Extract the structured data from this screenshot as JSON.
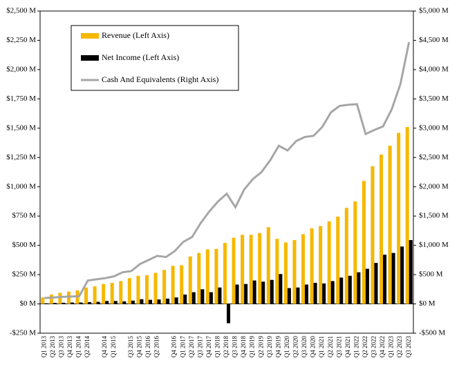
{
  "chart_data": {
    "type": "bar",
    "categories": [
      "Q1 2013",
      "Q2 2013",
      "Q3 2013",
      "Q4 2013",
      "Q1 2014",
      "Q2 2014",
      null,
      "Q4 2014",
      "Q1 2015",
      null,
      "Q3 2015",
      "Q4 2015",
      "Q1 2016",
      "Q2 2016",
      null,
      "Q4 2016",
      "Q1 2017",
      "Q2 2017",
      "Q3 2017",
      "Q4 2017",
      "Q1 2018",
      "Q2 2018",
      "Q3 2018",
      "Q4 2018",
      "Q1 2019",
      "Q2 2019",
      "Q3 2019",
      "Q4 2019",
      "Q1 2020",
      "Q2 2020",
      "Q3 2020",
      "Q4 2020",
      "Q1 2021",
      "Q2 2021",
      "Q3 2021",
      "Q4 2021",
      "Q1 2022",
      "Q2 2022",
      "Q3 2022",
      "Q4 2022",
      "Q1 2023",
      "Q2 2023",
      "Q3 2023"
    ],
    "series": [
      {
        "name": "Revenue (Left Axis)",
        "color": "#f5b800",
        "kind": "bar",
        "values": [
          55,
          80,
          95,
          105,
          115,
          140,
          150,
          170,
          180,
          195,
          220,
          240,
          245,
          265,
          290,
          325,
          330,
          405,
          435,
          465,
          470,
          520,
          565,
          590,
          590,
          605,
          655,
          555,
          525,
          545,
          595,
          645,
          665,
          705,
          745,
          820,
          875,
          1050,
          1175,
          1275,
          1350,
          1460,
          1510
        ]
      },
      {
        "name": "Net Income (Left Axis)",
        "color": "#000000",
        "kind": "bar",
        "values": [
          5,
          8,
          10,
          12,
          12,
          15,
          18,
          25,
          25,
          22,
          28,
          40,
          35,
          38,
          45,
          55,
          80,
          100,
          125,
          100,
          140,
          -165,
          165,
          170,
          200,
          190,
          205,
          255,
          135,
          140,
          165,
          180,
          175,
          195,
          225,
          240,
          270,
          300,
          350,
          420,
          435,
          490,
          545
        ]
      },
      {
        "name": "Cash And Equivalents (Right Axis)",
        "color": "#a6a6a6",
        "kind": "line",
        "axis": "y2",
        "values": [
          100,
          110,
          120,
          125,
          130,
          400,
          420,
          440,
          470,
          540,
          560,
          680,
          750,
          820,
          800,
          900,
          1060,
          1140,
          1380,
          1580,
          1750,
          1880,
          1650,
          1950,
          2130,
          2250,
          2450,
          2700,
          2620,
          2780,
          2850,
          2870,
          3020,
          3270,
          3380,
          3400,
          3410,
          2900,
          2970,
          3030,
          3320,
          3750,
          4470
        ]
      }
    ],
    "ylim": [
      -250,
      2500
    ],
    "yticks": [
      {
        "value": -250,
        "label": "-$250 M"
      },
      {
        "value": 0,
        "label": "$0 M"
      },
      {
        "value": 250,
        "label": "$250 M"
      },
      {
        "value": 500,
        "label": "$500 M"
      },
      {
        "value": 750,
        "label": "$750 M"
      },
      {
        "value": 1000,
        "label": "$1,000 M"
      },
      {
        "value": 1250,
        "label": "$1,250 M"
      },
      {
        "value": 1500,
        "label": "$1,500 M"
      },
      {
        "value": 1750,
        "label": "$1,750 M"
      },
      {
        "value": 2000,
        "label": "$2,000 M"
      },
      {
        "value": 2250,
        "label": "$2,250 M"
      },
      {
        "value": 2500,
        "label": "$2,500 M"
      }
    ],
    "y2lim": [
      -500,
      5000
    ],
    "y2ticks": [
      {
        "value": -500,
        "label": "-$500 M"
      },
      {
        "value": 0,
        "label": "$0 M"
      },
      {
        "value": 500,
        "label": "$500 M"
      },
      {
        "value": 1000,
        "label": "$1,000 M"
      },
      {
        "value": 1500,
        "label": "$1,500 M"
      },
      {
        "value": 2000,
        "label": "$2,000 M"
      },
      {
        "value": 2500,
        "label": "$2,500 M"
      },
      {
        "value": 3000,
        "label": "$3,000 M"
      },
      {
        "value": 3500,
        "label": "$3,500 M"
      },
      {
        "value": 4000,
        "label": "$4,000 M"
      },
      {
        "value": 4500,
        "label": "$4,500 M"
      },
      {
        "value": 5000,
        "label": "$5,000 M"
      }
    ],
    "grid": false,
    "legend": "upper left"
  }
}
